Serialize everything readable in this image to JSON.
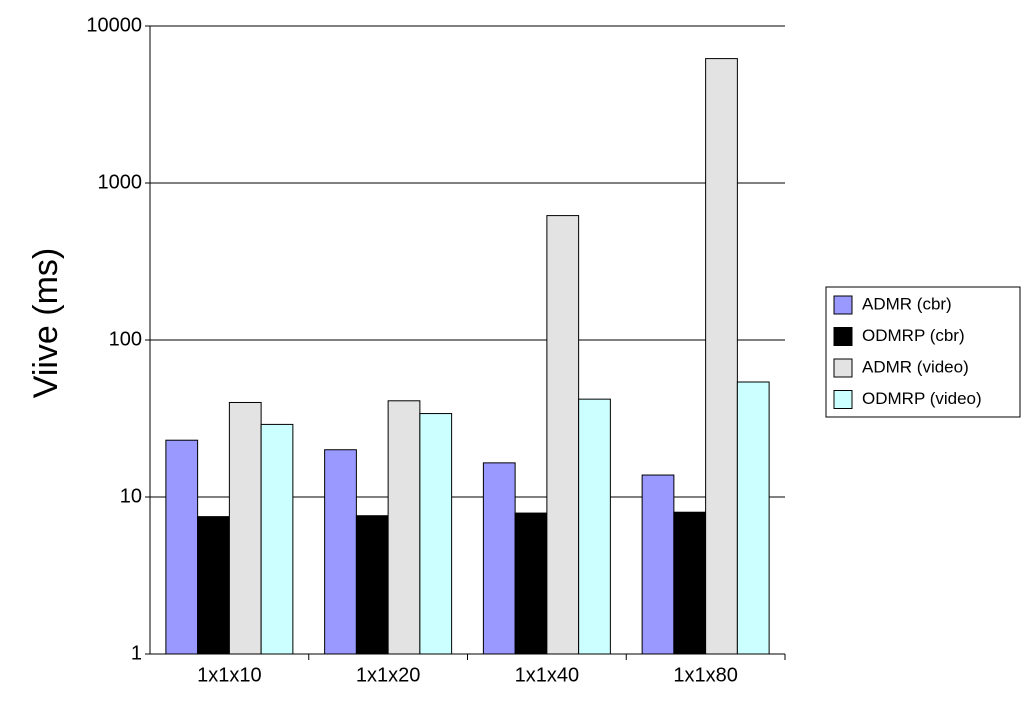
{
  "chart_data": {
    "type": "bar",
    "y_label": "Viive (ms)",
    "categories": [
      "1x1x10",
      "1x1x20",
      "1x1x40",
      "1x1x80"
    ],
    "series": [
      {
        "name": "ADMR (cbr)",
        "color": "#9999ff",
        "values": [
          23,
          20,
          16.5,
          13.8
        ]
      },
      {
        "name": "ODMRP (cbr)",
        "color": "#000000",
        "values": [
          7.5,
          7.6,
          7.9,
          8.0
        ]
      },
      {
        "name": "ADMR (video)",
        "color": "#e3e3e3",
        "values": [
          40,
          41,
          620,
          6200
        ]
      },
      {
        "name": "ODMRP (video)",
        "color": "#ccffff",
        "values": [
          29,
          34,
          42,
          54
        ]
      }
    ],
    "ylim": [
      1,
      10000
    ],
    "yticks": [
      1,
      10,
      100,
      1000,
      10000
    ],
    "log_scale": true,
    "grid": true,
    "legend_position": "right"
  }
}
